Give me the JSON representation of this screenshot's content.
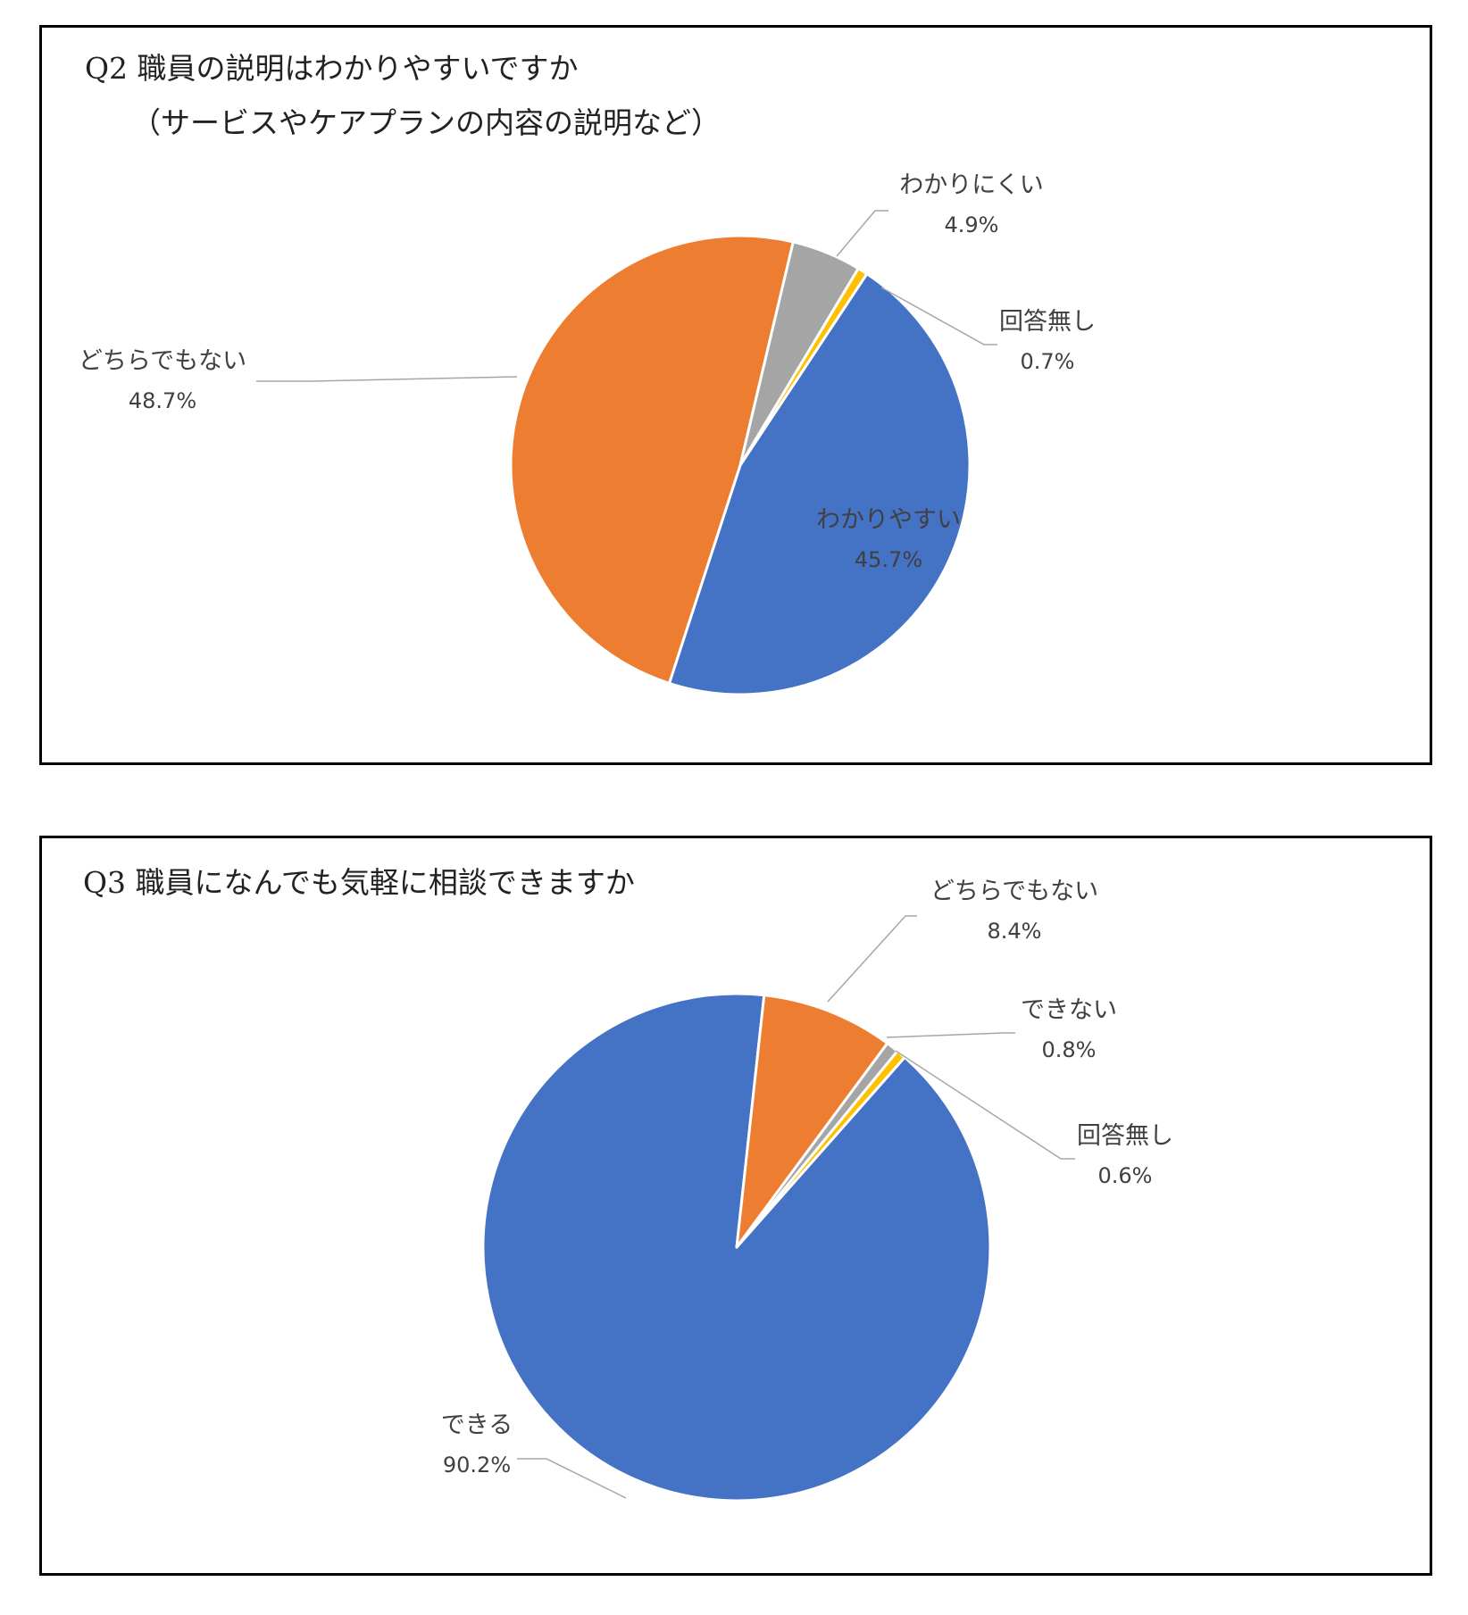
{
  "charts": [
    {
      "id": "q2",
      "title_line1": "Q2 職員の説明はわかりやすいですか",
      "title_line2": "（サービスやケアプランの内容の説明など）",
      "chart_data": {
        "type": "pie",
        "start_angle_deg": 33.5,
        "direction": "clockwise",
        "slices": [
          {
            "label": "わかりやすい",
            "value": 45.7,
            "value_text": "45.7%",
            "color": "#4472C4"
          },
          {
            "label": "どちらでもない",
            "value": 48.7,
            "value_text": "48.7%",
            "color": "#ED7D31"
          },
          {
            "label": "わかりにくい",
            "value": 4.9,
            "value_text": "4.9%",
            "color": "#A5A5A5"
          },
          {
            "label": "回答無し",
            "value": 0.7,
            "value_text": "0.7%",
            "color": "#FFC000"
          }
        ]
      }
    },
    {
      "id": "q3",
      "title_line1": "Q3 職員になんでも気軽に相談できますか",
      "chart_data": {
        "type": "pie",
        "start_angle_deg": 41.5,
        "direction": "clockwise",
        "slices": [
          {
            "label": "できる",
            "value": 90.2,
            "value_text": "90.2%",
            "color": "#4472C4"
          },
          {
            "label": "どちらでもない",
            "value": 8.4,
            "value_text": "8.4%",
            "color": "#ED7D31"
          },
          {
            "label": "できない",
            "value": 0.8,
            "value_text": "0.8%",
            "color": "#A5A5A5"
          },
          {
            "label": "回答無し",
            "value": 0.6,
            "value_text": "0.6%",
            "color": "#FFC000"
          }
        ]
      }
    }
  ]
}
